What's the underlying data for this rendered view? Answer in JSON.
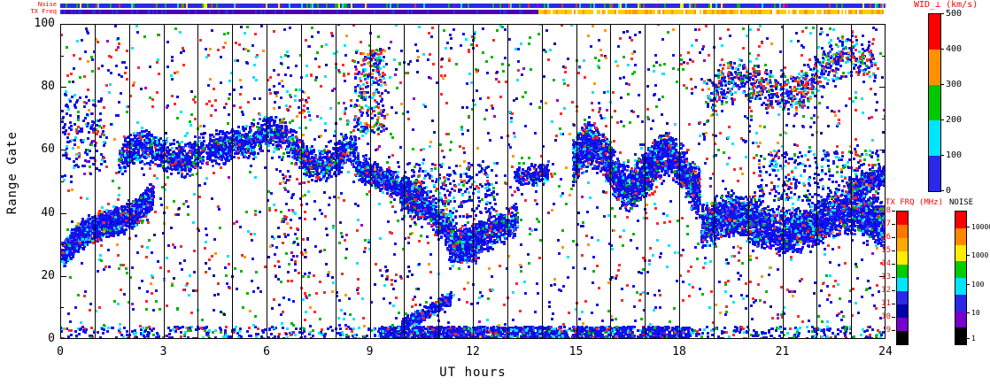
{
  "strips": {
    "noise": {
      "label": "Noise",
      "base": "#2a2ae6",
      "accents": [
        [
          "#2a2ae6",
          78
        ],
        [
          "#00b700",
          7
        ],
        [
          "#ffee00",
          4
        ],
        [
          "#00e5ff",
          4
        ],
        [
          "#ff2a2a",
          4
        ],
        [
          "#9900cc",
          3
        ]
      ]
    },
    "txfreq": {
      "label": "TX Freq",
      "segments": [
        {
          "t": [
            0,
            13.9
          ],
          "colors": [
            [
              "#4b00b4",
              84
            ],
            [
              "#2a2ae6",
              16
            ]
          ]
        },
        {
          "t": [
            13.9,
            24
          ],
          "colors": [
            [
              "#ffcc00",
              60
            ],
            [
              "#ff9900",
              25
            ],
            [
              "#ffffff",
              15
            ]
          ]
        }
      ]
    }
  },
  "colorbars": [
    {
      "id": "wid",
      "title": "WID_⊥ (km/s)",
      "title_color": "#ff0000",
      "segments_top_to_bottom": [
        "#ff0000",
        "#ff9100",
        "#00c800",
        "#00e5ff",
        "#2a2ae6"
      ],
      "ticks": [
        "500",
        "400",
        "300",
        "200",
        "100",
        "0"
      ],
      "tick_color": "#000000"
    },
    {
      "id": "txfrq",
      "title": "TX FRQ (MHz)",
      "title_color": "#ff0000",
      "segments_top_to_bottom": [
        "#ff0000",
        "#ff7700",
        "#ffaa00",
        "#ffee00",
        "#00cc00",
        "#00e5ff",
        "#2a2ae6",
        "#0000aa",
        "#7700cc",
        "#000000"
      ],
      "ticks": [
        "18",
        "17",
        "16",
        "15",
        "14",
        "13",
        "12",
        "11",
        "10",
        "9"
      ],
      "tick_color": "#ff0000"
    },
    {
      "id": "noise",
      "title": "NOISE",
      "title_color": "#000000",
      "segments_top_to_bottom": [
        "#ff0000",
        "#ff8800",
        "#ffee00",
        "#00cc00",
        "#00e5ff",
        "#2a2ae6",
        "#7700cc",
        "#000000"
      ],
      "ticks": [
        "10000",
        "1000",
        "100",
        "10",
        "1"
      ],
      "tick_color": "#000000"
    }
  ],
  "chart_data": {
    "type": "heatmap",
    "title": "",
    "xlabel": "UT hours",
    "ylabel": "Range Gate",
    "xlim": [
      0,
      24
    ],
    "ylim": [
      0,
      100
    ],
    "xticks": [
      "0",
      "3",
      "6",
      "9",
      "12",
      "15",
      "18",
      "21",
      "24"
    ],
    "xtick_values": [
      0,
      3,
      6,
      9,
      12,
      15,
      18,
      21,
      24
    ],
    "yticks": [
      "100",
      "80",
      "60",
      "40",
      "20",
      "0"
    ],
    "ytick_values": [
      100,
      80,
      60,
      40,
      20,
      0
    ],
    "hour_gridlines": [
      1,
      2,
      3,
      4,
      5,
      6,
      7,
      8,
      9,
      10,
      11,
      12,
      13,
      14,
      15,
      16,
      17,
      18,
      19,
      20,
      21,
      22,
      23
    ],
    "colorbar": {
      "label": "WID_⊥ (km/s)",
      "range": [
        0,
        500
      ],
      "tick_step": 100
    },
    "legend_position": "right",
    "grid": "vertical-hour-lines",
    "seed": 7,
    "palettes": {
      "dense": [
        [
          "#1414e6",
          58
        ],
        [
          "#0000ff",
          16
        ],
        [
          "#4444ff",
          8
        ],
        [
          "#00e5ff",
          10
        ],
        [
          "#00b700",
          4
        ],
        [
          "#ff2a2a",
          4
        ]
      ],
      "mixed": [
        [
          "#1414e6",
          44
        ],
        [
          "#00e5ff",
          15
        ],
        [
          "#00b700",
          12
        ],
        [
          "#ff2a2a",
          18
        ],
        [
          "#ff9900",
          5
        ],
        [
          "#4444ff",
          6
        ]
      ],
      "sparseblue": [
        [
          "#1414e6",
          68
        ],
        [
          "#00e5ff",
          18
        ],
        [
          "#00b700",
          6
        ],
        [
          "#ff2a2a",
          8
        ]
      ],
      "noise": [
        [
          "#1414e6",
          33
        ],
        [
          "#00e5ff",
          13
        ],
        [
          "#00b700",
          15
        ],
        [
          "#ff2a2a",
          23
        ],
        [
          "#ff9900",
          6
        ],
        [
          "#9900cc",
          4
        ],
        [
          "#0d0d99",
          6
        ]
      ]
    },
    "features": [
      {
        "name": "dawn-band",
        "t": [
          0.05,
          2.7
        ],
        "g": [
          27,
          46
        ],
        "w": 5,
        "amp": 2,
        "cyc": 1,
        "n": 1400,
        "p": "dense"
      },
      {
        "name": "dawn-top-scatter",
        "box": true,
        "t": [
          0.05,
          1.3
        ],
        "g": [
          55,
          78
        ],
        "n": 140,
        "p": "sparseblue"
      },
      {
        "name": "morning-blob-1",
        "t": [
          1.7,
          4.2
        ],
        "g": [
          57,
          61
        ],
        "w": 6,
        "amp": 3,
        "cyc": 1,
        "n": 700,
        "p": "dense"
      },
      {
        "name": "morning-blob-2",
        "t": [
          4.25,
          5.6
        ],
        "g": [
          60,
          63
        ],
        "w": 6,
        "amp": 0,
        "cyc": 0,
        "n": 450,
        "p": "dense"
      },
      {
        "name": "midmorning-band",
        "t": [
          5.6,
          8.6
        ],
        "g": [
          63,
          57
        ],
        "w": 6,
        "amp": 4,
        "cyc": 1.2,
        "n": 900,
        "p": "dense"
      },
      {
        "name": "descending-band",
        "t": [
          8.6,
          10.1
        ],
        "g": [
          55,
          47
        ],
        "w": 5,
        "amp": 0,
        "cyc": 0,
        "n": 500,
        "p": "dense"
      },
      {
        "name": "noon-trough-down",
        "t": [
          9.9,
          12.1
        ],
        "g": [
          46,
          29
        ],
        "w": 6,
        "amp": 2,
        "cyc": 1,
        "n": 900,
        "p": "dense"
      },
      {
        "name": "noon-trough-up",
        "t": [
          11.3,
          13.3
        ],
        "g": [
          28,
          38
        ],
        "w": 6,
        "amp": 0,
        "cyc": 0,
        "n": 700,
        "p": "dense"
      },
      {
        "name": "noon-upper-scatter",
        "box": true,
        "t": [
          10.0,
          12.7
        ],
        "g": [
          38,
          56
        ],
        "n": 260,
        "p": "sparseblue"
      },
      {
        "name": "early-pm-blob",
        "t": [
          13.2,
          14.2
        ],
        "g": [
          51,
          53
        ],
        "w": 4,
        "amp": 0,
        "cyc": 0,
        "n": 180,
        "p": "dense"
      },
      {
        "name": "pm-dense-band",
        "t": [
          14.9,
          18.6
        ],
        "g": [
          56,
          52
        ],
        "w": 8,
        "amp": 6,
        "cyc": 1.7,
        "n": 2300,
        "p": "dense"
      },
      {
        "name": "night-dense-band",
        "t": [
          18.65,
          24
        ],
        "g": [
          36,
          38
        ],
        "w": 8,
        "amp": 3,
        "cyc": 1.6,
        "n": 2800,
        "p": "dense"
      },
      {
        "name": "night-upper-band",
        "t": [
          18.8,
          23.7
        ],
        "g": [
          76,
          88
        ],
        "w": 8,
        "amp": 4,
        "cyc": 1.5,
        "n": 750,
        "p": "mixed"
      },
      {
        "name": "column-6-7",
        "box": true,
        "t": [
          6.2,
          7.3
        ],
        "g": [
          18,
          95
        ],
        "n": 130,
        "p": "noise"
      },
      {
        "name": "cluster-9ut-high",
        "box": true,
        "t": [
          8.55,
          9.45
        ],
        "g": [
          66,
          92
        ],
        "n": 240,
        "p": "mixed"
      },
      {
        "name": "bottom-scatter",
        "box": true,
        "t": [
          0.0,
          24.0
        ],
        "g": [
          0,
          4
        ],
        "n": 700,
        "p": "sparseblue"
      },
      {
        "name": "bottom-dense-noon",
        "box": true,
        "t": [
          9.3,
          14.7
        ],
        "g": [
          0,
          4
        ],
        "n": 900,
        "p": "dense"
      },
      {
        "name": "bottom-dense-pm1",
        "box": true,
        "t": [
          14.9,
          16.7
        ],
        "g": [
          0,
          4
        ],
        "n": 300,
        "p": "dense"
      },
      {
        "name": "bottom-dense-pm2",
        "box": true,
        "t": [
          16.9,
          18.3
        ],
        "g": [
          0,
          4
        ],
        "n": 220,
        "p": "dense"
      },
      {
        "name": "low-diagonal",
        "t": [
          9.9,
          11.35
        ],
        "g": [
          4,
          13
        ],
        "w": 2.5,
        "amp": 0,
        "cyc": 0,
        "n": 350,
        "p": "dense"
      },
      {
        "name": "late-mid-scatter",
        "box": true,
        "t": [
          20.3,
          23.8
        ],
        "g": [
          44,
          60
        ],
        "n": 280,
        "p": "sparseblue"
      },
      {
        "name": "end-blob",
        "t": [
          22.9,
          24
        ],
        "g": [
          47,
          52
        ],
        "w": 4,
        "amp": 0,
        "cyc": 0,
        "n": 320,
        "p": "dense"
      },
      {
        "name": "background-speckle",
        "box": true,
        "t": [
          0.02,
          23.98
        ],
        "g": [
          0,
          100
        ],
        "n": 2300,
        "p": "noise"
      }
    ]
  }
}
